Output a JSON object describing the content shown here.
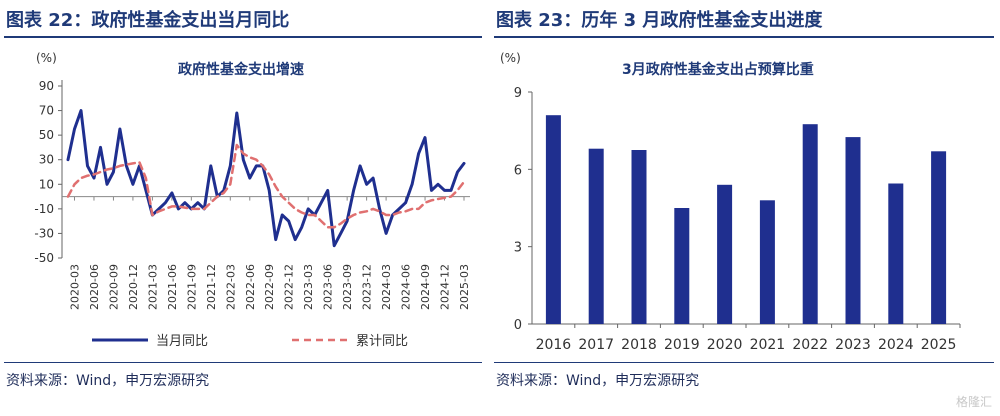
{
  "left": {
    "figure_title": "图表 22：政府性基金支出当月同比",
    "source": "资料来源：Wind，申万宏源研究"
  },
  "right": {
    "figure_title": "图表 23：历年 3 月政府性基金支出进度",
    "source": "资料来源：Wind，申万宏源研究"
  },
  "watermark": "格隆汇",
  "colors": {
    "navy": "#1f2f8f",
    "red": "#e07070",
    "title": "#1f3a78"
  },
  "chart_data": [
    {
      "type": "line",
      "title": "政府性基金支出增速",
      "ylabel": "(%)",
      "ylim": [
        -50,
        90
      ],
      "yticks": [
        -50,
        -30,
        -10,
        10,
        30,
        50,
        70,
        90
      ],
      "grid": false,
      "legend_position": "bottom",
      "x_tick_labels": [
        "2020-03",
        "2020-06",
        "2020-09",
        "2020-12",
        "2021-03",
        "2021-06",
        "2021-09",
        "2021-12",
        "2022-03",
        "2022-06",
        "2022-09",
        "2022-12",
        "2023-03",
        "2023-06",
        "2023-09",
        "2023-12",
        "2024-03",
        "2024-06",
        "2024-09",
        "2024-12",
        "2025-03"
      ],
      "x": [
        "2020-02",
        "2020-03",
        "2020-04",
        "2020-05",
        "2020-06",
        "2020-07",
        "2020-08",
        "2020-09",
        "2020-10",
        "2020-11",
        "2020-12",
        "2021-01",
        "2021-02",
        "2021-03",
        "2021-04",
        "2021-05",
        "2021-06",
        "2021-07",
        "2021-08",
        "2021-09",
        "2021-10",
        "2021-11",
        "2021-12",
        "2022-01",
        "2022-02",
        "2022-03",
        "2022-04",
        "2022-05",
        "2022-06",
        "2022-07",
        "2022-08",
        "2022-09",
        "2022-10",
        "2022-11",
        "2022-12",
        "2023-01",
        "2023-02",
        "2023-03",
        "2023-04",
        "2023-05",
        "2023-06",
        "2023-07",
        "2023-08",
        "2023-09",
        "2023-10",
        "2023-11",
        "2023-12",
        "2024-01",
        "2024-02",
        "2024-03",
        "2024-04",
        "2024-05",
        "2024-06",
        "2024-07",
        "2024-08",
        "2024-09",
        "2024-10",
        "2024-11",
        "2024-12",
        "2025-01",
        "2025-02",
        "2025-03"
      ],
      "series": [
        {
          "name": "当月同比",
          "style": "solid",
          "color": "#1f2f8f",
          "values": [
            30,
            55,
            70,
            25,
            15,
            40,
            10,
            20,
            55,
            25,
            10,
            25,
            5,
            -15,
            -10,
            -5,
            3,
            -10,
            -5,
            -10,
            -5,
            -10,
            25,
            0,
            5,
            25,
            68,
            30,
            15,
            25,
            25,
            5,
            -35,
            -15,
            -20,
            -35,
            -25,
            -10,
            -15,
            -5,
            5,
            -40,
            -30,
            -20,
            5,
            25,
            10,
            15,
            -10,
            -30,
            -15,
            -10,
            -5,
            10,
            35,
            48,
            5,
            10,
            5,
            5,
            20,
            27
          ]
        },
        {
          "name": "累计同比",
          "style": "dashed",
          "color": "#e07070",
          "values": [
            0,
            10,
            15,
            17,
            18,
            20,
            22,
            23,
            25,
            26,
            27,
            28,
            15,
            -15,
            -12,
            -10,
            -8,
            -8,
            -9,
            -10,
            -10,
            -10,
            -5,
            0,
            3,
            10,
            42,
            35,
            32,
            30,
            25,
            18,
            8,
            0,
            -5,
            -10,
            -13,
            -15,
            -15,
            -20,
            -25,
            -25,
            -22,
            -18,
            -15,
            -13,
            -12,
            -10,
            -12,
            -15,
            -15,
            -13,
            -12,
            -10,
            -10,
            -5,
            -3,
            -2,
            -1,
            0,
            5,
            12
          ]
        }
      ]
    },
    {
      "type": "bar",
      "title": "3月政府性基金支出占预算比重",
      "ylabel": "(%)",
      "ylim": [
        0,
        9
      ],
      "yticks": [
        0,
        3,
        6,
        9
      ],
      "grid": false,
      "color": "#1f2f8f",
      "categories": [
        "2016",
        "2017",
        "2018",
        "2019",
        "2020",
        "2021",
        "2022",
        "2023",
        "2024",
        "2025"
      ],
      "values": [
        8.1,
        6.8,
        6.75,
        4.5,
        5.4,
        4.8,
        7.75,
        7.25,
        5.45,
        6.7
      ]
    }
  ]
}
